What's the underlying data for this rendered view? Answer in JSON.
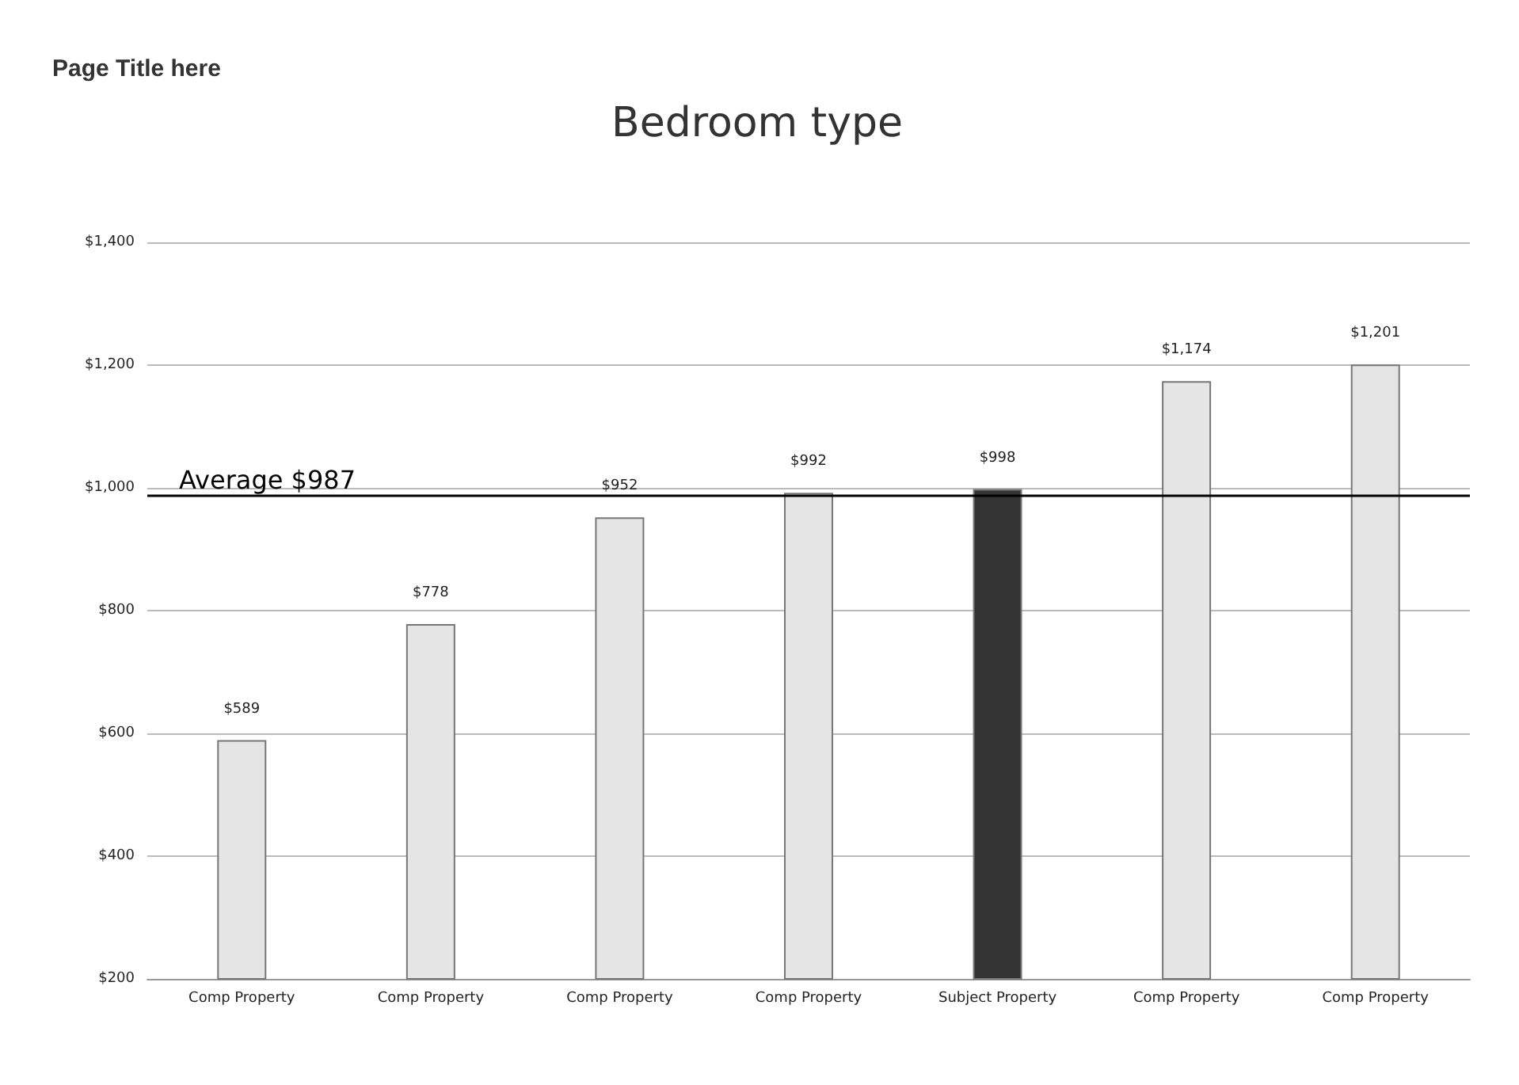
{
  "chart_data": {
    "type": "bar",
    "title": "Bedroom type",
    "annotations": [
      "Page Title here"
    ],
    "categories": [
      "Comp Property",
      "Comp Property",
      "Comp Property",
      "Comp Property",
      "Subject Property",
      "Comp Property",
      "Comp Property"
    ],
    "values": [
      589,
      778,
      952,
      992,
      998,
      1174,
      1201
    ],
    "colors": [
      "#e5e5e5",
      "#e5e5e5",
      "#e5e5e5",
      "#e5e5e5",
      "#333333",
      "#e5e5e5",
      "#e5e5e5"
    ],
    "value_labels": [
      "$589",
      "$778",
      "$952",
      "$992",
      "$998",
      "$1,174",
      "$1,201"
    ],
    "ylim": [
      200,
      1400
    ],
    "yticks": [
      {
        "value": 200,
        "label": "$200"
      },
      {
        "value": 400,
        "label": "$400"
      },
      {
        "value": 600,
        "label": "$600"
      },
      {
        "value": 800,
        "label": "$800"
      },
      {
        "value": 1000,
        "label": "$1,000"
      },
      {
        "value": 1200,
        "label": "$1,200"
      },
      {
        "value": 1400,
        "label": "$1,400"
      }
    ],
    "grid": "y",
    "ref_lines": [
      {
        "axis": "y",
        "value": 987,
        "label": "Average $987",
        "color": "#000000"
      }
    ]
  }
}
